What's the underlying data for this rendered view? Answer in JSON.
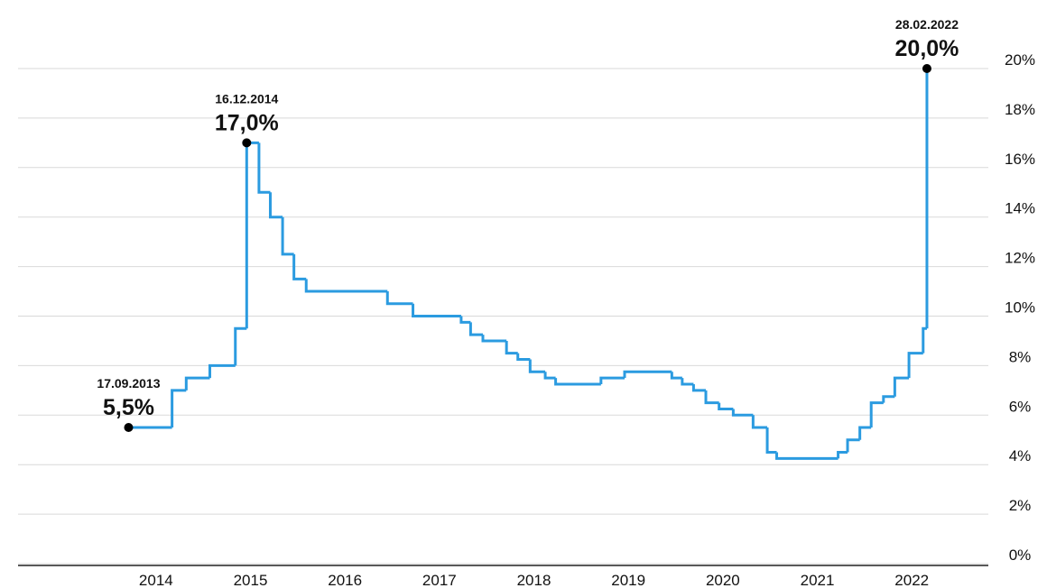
{
  "chart_data": {
    "type": "step",
    "series": [
      {
        "color": "#2b9be0",
        "x": [
          2013.71,
          2014.17,
          2014.32,
          2014.57,
          2014.84,
          2014.96,
          2015.09,
          2015.21,
          2015.34,
          2015.46,
          2015.59,
          2016.45,
          2016.72,
          2017.23,
          2017.33,
          2017.46,
          2017.71,
          2017.83,
          2017.96,
          2018.12,
          2018.23,
          2018.71,
          2018.96,
          2019.46,
          2019.57,
          2019.69,
          2019.82,
          2019.96,
          2020.11,
          2020.32,
          2020.47,
          2020.57,
          2021.22,
          2021.32,
          2021.45,
          2021.57,
          2021.7,
          2021.82,
          2021.97,
          2022.12,
          2022.16
        ],
        "values": [
          5.5,
          7,
          7.5,
          8,
          9.5,
          17,
          15,
          14,
          12.5,
          11.5,
          11,
          10.5,
          10,
          9.75,
          9.25,
          9,
          8.5,
          8.25,
          7.75,
          7.5,
          7.25,
          7.5,
          7.75,
          7.5,
          7.25,
          7,
          6.5,
          6.25,
          6,
          5.5,
          4.5,
          4.25,
          4.5,
          5,
          5.5,
          6.5,
          6.75,
          7.5,
          8.5,
          9.5,
          20
        ],
        "value_labels": [
          "5,5%",
          null,
          null,
          null,
          null,
          "17,0%",
          null,
          null,
          null,
          null,
          null,
          null,
          null,
          null,
          null,
          null,
          null,
          null,
          null,
          null,
          null,
          null,
          null,
          null,
          null,
          null,
          null,
          null,
          null,
          null,
          null,
          null,
          null,
          null,
          null,
          null,
          null,
          null,
          null,
          null,
          "20,0%"
        ],
        "point_labels": [
          "17.09.2013",
          null,
          null,
          null,
          null,
          "16.12.2014",
          null,
          null,
          null,
          null,
          null,
          null,
          null,
          null,
          null,
          null,
          null,
          null,
          null,
          null,
          null,
          null,
          null,
          null,
          null,
          null,
          null,
          null,
          null,
          null,
          null,
          null,
          null,
          null,
          null,
          null,
          null,
          null,
          null,
          null,
          "28.02.2022"
        ]
      }
    ],
    "xlim": [
      2012.54,
      2022.81
    ],
    "xticks": [
      2014,
      2015,
      2016,
      2017,
      2018,
      2019,
      2020,
      2021,
      2022
    ],
    "ylim": [
      0,
      20
    ],
    "yticks": [
      {
        "value": 0,
        "label": "0%"
      },
      {
        "value": 2,
        "label": "2%"
      },
      {
        "value": 4,
        "label": "4%"
      },
      {
        "value": 6,
        "label": "6%"
      },
      {
        "value": 8,
        "label": "8%"
      },
      {
        "value": 10,
        "label": "10%"
      },
      {
        "value": 12,
        "label": "12%"
      },
      {
        "value": 14,
        "label": "14%"
      },
      {
        "value": 16,
        "label": "16%"
      },
      {
        "value": 18,
        "label": "18%"
      },
      {
        "value": 20,
        "label": "20%"
      }
    ],
    "grid": true,
    "y_axis_side": "right"
  }
}
